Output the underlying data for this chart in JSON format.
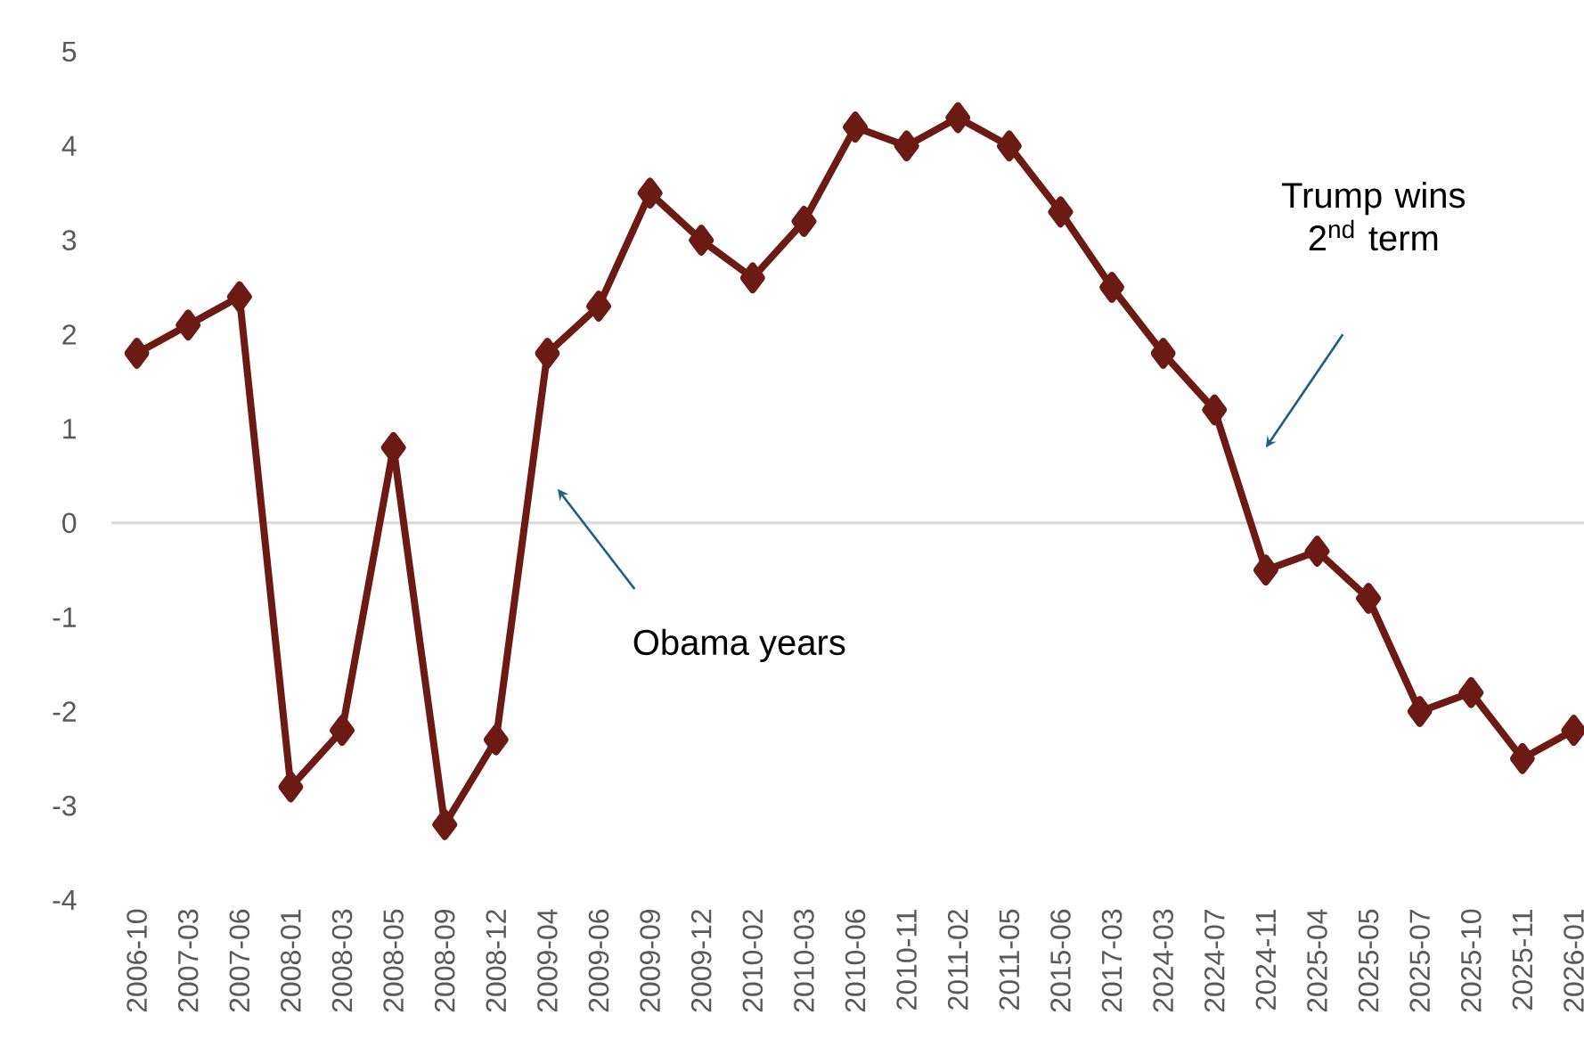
{
  "chart_data": {
    "type": "line",
    "categories": [
      "2006-10",
      "2007-03",
      "2007-06",
      "2008-01",
      "2008-03",
      "2008-05",
      "2008-09",
      "2008-12",
      "2009-04",
      "2009-06",
      "2009-09",
      "2009-12",
      "2010-02",
      "2010-03",
      "2010-06",
      "2010-11",
      "2011-02",
      "2011-05",
      "2015-06",
      "2017-03",
      "2024-03",
      "2024-07",
      "2024-11",
      "2025-04",
      "2025-05",
      "2025-07",
      "2025-10",
      "2025-11",
      "2026-01"
    ],
    "series": [
      {
        "color": "#6b1a14",
        "values": [
          1.8,
          2.1,
          2.4,
          -2.8,
          -2.2,
          0.8,
          -3.2,
          -2.3,
          1.8,
          2.3,
          3.5,
          3.0,
          2.6,
          3.2,
          4.2,
          4.0,
          4.3,
          4.0,
          3.3,
          2.5,
          1.8,
          1.2,
          -0.5,
          -0.3,
          -0.8,
          -2.0,
          -1.8,
          -2.5,
          -2.2
        ]
      }
    ],
    "ylim": [
      -4,
      5
    ],
    "yticks": [
      -4,
      -3,
      -2,
      -1,
      0,
      1,
      2,
      3,
      4,
      5
    ],
    "marker": "diamond",
    "line_style": "solid",
    "ref_lines": [
      {
        "axis": "y",
        "value": 0,
        "color": "#d9d9d9"
      }
    ],
    "annotations": [
      "Obama years",
      "Trump wins 2$^{nd}$ term"
    ]
  }
}
